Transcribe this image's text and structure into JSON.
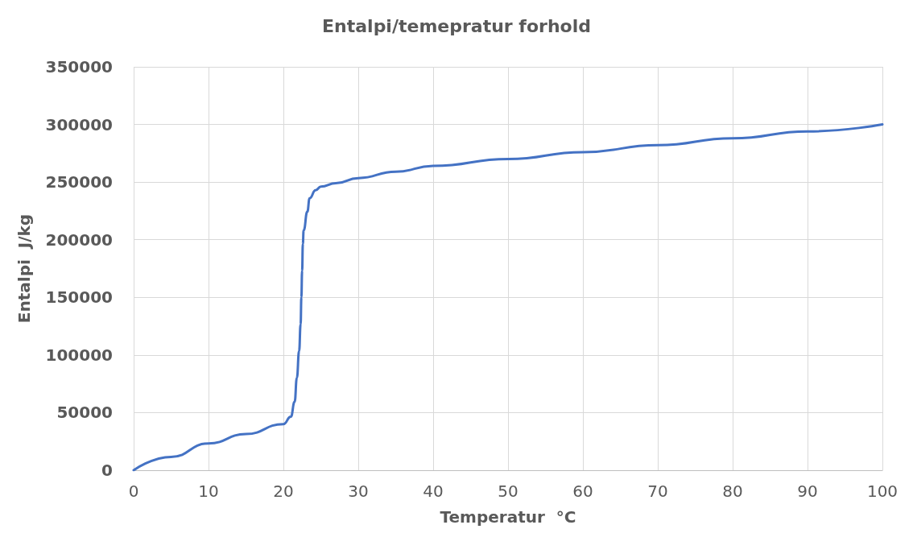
{
  "chart_data": {
    "type": "line",
    "title": "Entalpi/temepratur forhold",
    "xlabel": "Temperatur  °C",
    "ylabel": "Entalpi  J/kg",
    "x": [
      0,
      5,
      10,
      15,
      20,
      21,
      21.5,
      21.8,
      22.1,
      22.3,
      22.4,
      22.5,
      22.6,
      22.7,
      23.2,
      23.5,
      24.3,
      25,
      27,
      30,
      35,
      40,
      50,
      60,
      70,
      80,
      90,
      100
    ],
    "series": [
      {
        "color": "#4472c4",
        "values": [
          0,
          11600,
          23300,
          31400,
          40000,
          46500,
          59300,
          80200,
          103500,
          126700,
          150000,
          173000,
          196500,
          208000,
          224400,
          236000,
          243000,
          246000,
          249000,
          253500,
          259000,
          264000,
          270000,
          276000,
          282000,
          288000,
          294000,
          300000
        ]
      }
    ],
    "xlim": [
      0,
      100
    ],
    "xticks": [
      0,
      10,
      20,
      30,
      40,
      50,
      60,
      70,
      80,
      90,
      100
    ],
    "ylim": [
      0,
      350000
    ],
    "yticks": [
      0,
      50000,
      100000,
      150000,
      200000,
      250000,
      300000,
      350000
    ],
    "grid": true,
    "marker": "none",
    "line_style": "solid"
  }
}
